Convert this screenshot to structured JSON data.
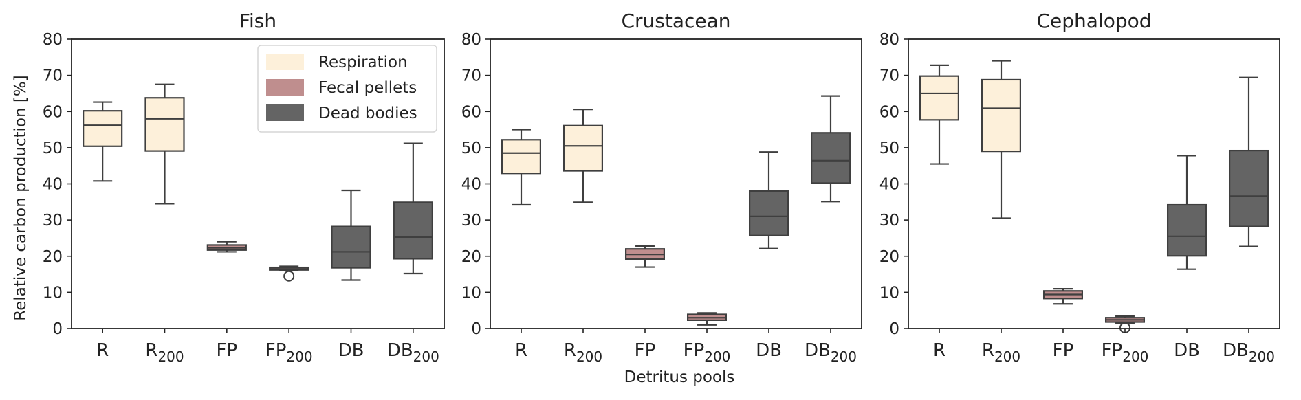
{
  "chart_data": {
    "type": "box",
    "ylabel": "Relative carbon production [%]",
    "xlabel": "Detritus pools",
    "ylim": [
      0,
      80
    ],
    "yticks": [
      "0",
      "10",
      "20",
      "30",
      "40",
      "50",
      "60",
      "70",
      "80"
    ],
    "categories": [
      {
        "base": "R",
        "sub": ""
      },
      {
        "base": "R",
        "sub": "200"
      },
      {
        "base": "FP",
        "sub": ""
      },
      {
        "base": "FP",
        "sub": "200"
      },
      {
        "base": "DB",
        "sub": ""
      },
      {
        "base": "DB",
        "sub": "200"
      }
    ],
    "category_groups": [
      "Respiration",
      "Respiration",
      "Fecal pellets",
      "Fecal pellets",
      "Dead bodies",
      "Dead bodies"
    ],
    "legend": {
      "position": "upper-right of first panel",
      "entries": [
        {
          "label": "Respiration",
          "color": "#fdf0da"
        },
        {
          "label": "Fecal pellets",
          "color": "#bf8e8e"
        },
        {
          "label": "Dead bodies",
          "color": "#646464"
        }
      ]
    },
    "panels": [
      {
        "title": "Fish",
        "boxes": [
          {
            "min": 40.8,
            "q1": 50.4,
            "median": 56.2,
            "q3": 60.2,
            "max": 62.6,
            "outliers": []
          },
          {
            "min": 34.5,
            "q1": 49.1,
            "median": 58.0,
            "q3": 63.8,
            "max": 67.5,
            "outliers": []
          },
          {
            "min": 21.2,
            "q1": 21.7,
            "median": 22.3,
            "q3": 23.1,
            "max": 24.0,
            "outliers": []
          },
          {
            "min": 16.0,
            "q1": 16.2,
            "median": 16.5,
            "q3": 16.9,
            "max": 17.2,
            "outliers": [
              14.5
            ]
          },
          {
            "min": 13.4,
            "q1": 16.8,
            "median": 21.2,
            "q3": 28.2,
            "max": 38.2,
            "outliers": []
          },
          {
            "min": 15.2,
            "q1": 19.3,
            "median": 25.3,
            "q3": 34.9,
            "max": 51.2,
            "outliers": []
          }
        ]
      },
      {
        "title": "Crustacean",
        "boxes": [
          {
            "min": 34.2,
            "q1": 42.9,
            "median": 48.5,
            "q3": 52.2,
            "max": 55.0,
            "outliers": []
          },
          {
            "min": 34.9,
            "q1": 43.6,
            "median": 50.5,
            "q3": 56.1,
            "max": 60.6,
            "outliers": []
          },
          {
            "min": 17.0,
            "q1": 19.2,
            "median": 20.5,
            "q3": 22.0,
            "max": 22.8,
            "outliers": []
          },
          {
            "min": 1.0,
            "q1": 2.3,
            "median": 3.0,
            "q3": 3.9,
            "max": 4.3,
            "outliers": []
          },
          {
            "min": 22.1,
            "q1": 25.7,
            "median": 31.0,
            "q3": 38.0,
            "max": 48.8,
            "outliers": []
          },
          {
            "min": 35.1,
            "q1": 40.2,
            "median": 46.4,
            "q3": 54.1,
            "max": 64.3,
            "outliers": []
          }
        ]
      },
      {
        "title": "Cephalopod",
        "boxes": [
          {
            "min": 45.5,
            "q1": 57.7,
            "median": 65.0,
            "q3": 69.8,
            "max": 72.8,
            "outliers": []
          },
          {
            "min": 30.5,
            "q1": 49.0,
            "median": 60.9,
            "q3": 68.8,
            "max": 74.0,
            "outliers": []
          },
          {
            "min": 6.8,
            "q1": 8.3,
            "median": 9.4,
            "q3": 10.4,
            "max": 11.0,
            "outliers": []
          },
          {
            "min": 1.5,
            "q1": 1.8,
            "median": 2.4,
            "q3": 3.0,
            "max": 3.4,
            "outliers": [
              0.2
            ]
          },
          {
            "min": 16.4,
            "q1": 20.1,
            "median": 25.5,
            "q3": 34.2,
            "max": 47.8,
            "outliers": []
          },
          {
            "min": 22.7,
            "q1": 28.2,
            "median": 36.6,
            "q3": 49.2,
            "max": 69.4,
            "outliers": []
          }
        ]
      }
    ],
    "colors": {
      "Respiration": "#fdf0da",
      "Fecal pellets": "#bf8e8e",
      "Dead bodies": "#646464",
      "line": "#3f3f3f"
    }
  }
}
